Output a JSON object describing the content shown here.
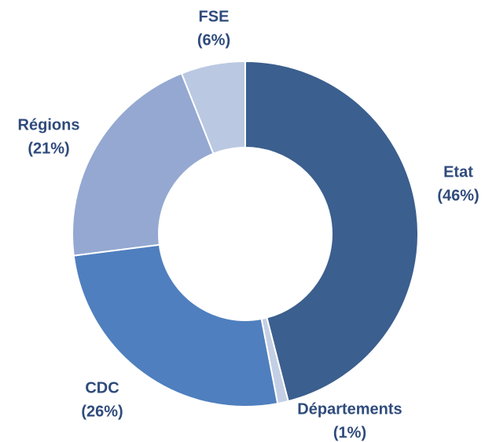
{
  "chart_data": {
    "type": "donut",
    "categories": [
      "Etat",
      "Départements",
      "CDC",
      "Régions",
      "FSE"
    ],
    "values": [
      46,
      1,
      26,
      21,
      6
    ],
    "value_labels": [
      "(46%)",
      "(1%)",
      "(26%)",
      "(21%)",
      "(6%)"
    ],
    "colors": [
      "#3b5f8e",
      "#c3cfe4",
      "#4f7fbe",
      "#94a8d1",
      "#bac8e2"
    ]
  }
}
